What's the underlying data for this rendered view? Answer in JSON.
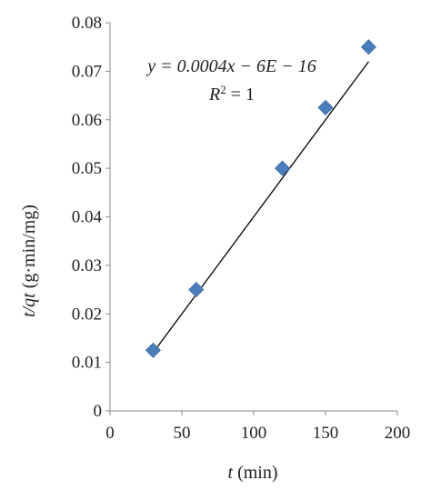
{
  "chart_data": {
    "type": "scatter",
    "title": "",
    "xlabel": "t (min)",
    "xlabel_var": "t",
    "xlabel_unit": " (min)",
    "ylabel": "t/qt (g·min/mg)",
    "ylabel_var": "t/qt",
    "ylabel_unit": " (g·min/mg)",
    "xlim": [
      0,
      200
    ],
    "ylim": [
      0,
      0.08
    ],
    "xticks": [
      0,
      50,
      100,
      150,
      200
    ],
    "xtick_labels": [
      "0",
      "50",
      "100",
      "150",
      "200"
    ],
    "yticks": [
      0,
      0.01,
      0.02,
      0.03,
      0.04,
      0.05,
      0.06,
      0.07,
      0.08
    ],
    "ytick_labels": [
      "0",
      "0.01",
      "0.02",
      "0.03",
      "0.04",
      "0.05",
      "0.06",
      "0.07",
      "0.08"
    ],
    "grid": false,
    "legend": "none",
    "series": [
      {
        "marker": "diamond",
        "color": "#4a7ebb",
        "x": [
          30,
          60,
          120,
          150,
          180
        ],
        "y": [
          0.0125,
          0.025,
          0.05,
          0.0625,
          0.075
        ]
      }
    ],
    "trendline": {
      "slope": 0.0004,
      "intercept": 0,
      "x_range": [
        30,
        180
      ],
      "color": "#000000"
    },
    "annotations": {
      "equation": "y = 0.0004x − 6E − 16",
      "r_squared": "R2 = 1",
      "r_squared_lhs": "R",
      "r_squared_sup": "2",
      "r_squared_rhs": " = 1"
    }
  }
}
